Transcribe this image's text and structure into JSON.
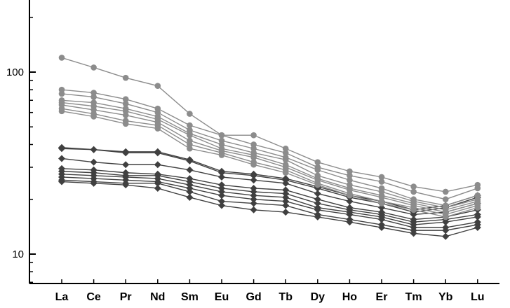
{
  "chart_data": {
    "type": "line",
    "yscale": "log",
    "ylim": [
      4,
      250
    ],
    "categories": [
      "La",
      "Ce",
      "Pr",
      "Nd",
      "Sm",
      "Eu",
      "Gd",
      "Tb",
      "Dy",
      "Ho",
      "Er",
      "Tm",
      "Yb",
      "Lu"
    ],
    "yticks": [
      10,
      100
    ],
    "ytick_labels": [
      "10",
      "100"
    ],
    "grid": false,
    "legend": "none",
    "colors": {
      "circle_series": "#8c8c8c",
      "diamond_series": "#404040",
      "axis": "#000000"
    },
    "series": [
      {
        "marker": "circle",
        "values": [
          120,
          106,
          93,
          84,
          59,
          45,
          45,
          38,
          32,
          28.5,
          26.5,
          23.5,
          22,
          24
        ]
      },
      {
        "marker": "circle",
        "values": [
          80,
          77,
          71,
          63,
          51,
          45,
          40,
          36,
          30,
          27,
          25,
          22,
          20,
          23
        ]
      },
      {
        "marker": "circle",
        "values": [
          76,
          73,
          67,
          60,
          48,
          42,
          38,
          34,
          29,
          25.5,
          23,
          20,
          18.5,
          21
        ]
      },
      {
        "marker": "circle",
        "values": [
          70,
          68,
          63,
          57,
          46,
          40,
          36,
          33,
          27,
          24,
          22,
          19.5,
          18,
          20
        ]
      },
      {
        "marker": "circle",
        "values": [
          68,
          65,
          61,
          55,
          45,
          38,
          35,
          31,
          26,
          23,
          21,
          19,
          17.5,
          19.5
        ]
      },
      {
        "marker": "circle",
        "values": [
          66,
          62,
          58,
          53,
          42,
          37,
          34,
          30,
          25.5,
          22.5,
          20.5,
          18.5,
          17,
          19
        ]
      },
      {
        "marker": "circle",
        "values": [
          63,
          59,
          54,
          51,
          40,
          36,
          32,
          29,
          24.5,
          21.5,
          19.5,
          18,
          16.5,
          18.5
        ]
      },
      {
        "marker": "circle",
        "values": [
          61,
          57,
          52,
          49,
          38,
          35,
          31,
          28,
          24,
          21,
          19,
          17.5,
          16,
          18
        ]
      },
      {
        "marker": "diamond",
        "values": [
          38,
          37.5,
          36.5,
          36.5,
          33,
          28.5,
          27.5,
          26,
          23.5,
          21,
          19.5,
          17.5,
          18.5,
          21
        ]
      },
      {
        "marker": "diamond",
        "values": [
          38.5,
          37.5,
          36,
          36,
          32.5,
          28,
          27,
          25.5,
          23,
          20.5,
          19,
          17,
          18,
          20.5
        ]
      },
      {
        "marker": "diamond",
        "values": [
          33.5,
          32,
          31,
          31,
          29,
          26.5,
          25.5,
          24.5,
          21.5,
          19.5,
          18,
          16.5,
          17,
          19
        ]
      },
      {
        "marker": "diamond",
        "values": [
          29.5,
          29,
          28,
          27.5,
          26,
          24,
          23,
          22.5,
          20,
          18,
          17,
          15.5,
          16,
          17.5
        ]
      },
      {
        "marker": "diamond",
        "values": [
          28.5,
          28,
          27,
          27,
          25,
          23,
          22,
          21.5,
          19,
          17.5,
          16.5,
          15,
          15.5,
          16.5
        ]
      },
      {
        "marker": "diamond",
        "values": [
          27.5,
          27,
          26.5,
          26,
          24,
          22,
          21,
          20.5,
          18,
          17,
          16,
          14.5,
          15,
          16
        ]
      },
      {
        "marker": "diamond",
        "values": [
          26.5,
          26,
          25.5,
          25,
          23,
          21,
          20,
          19.5,
          17.5,
          16.5,
          15.5,
          14,
          14,
          15
        ]
      },
      {
        "marker": "diamond",
        "values": [
          25.5,
          25,
          24.5,
          24.5,
          22,
          19.5,
          19,
          18.5,
          16.5,
          15.5,
          14.5,
          13.5,
          13.5,
          14.5
        ]
      },
      {
        "marker": "diamond",
        "values": [
          25,
          24.5,
          24,
          23,
          20.5,
          18.5,
          17.5,
          17,
          16,
          15,
          14,
          13,
          12.5,
          14
        ]
      }
    ]
  }
}
